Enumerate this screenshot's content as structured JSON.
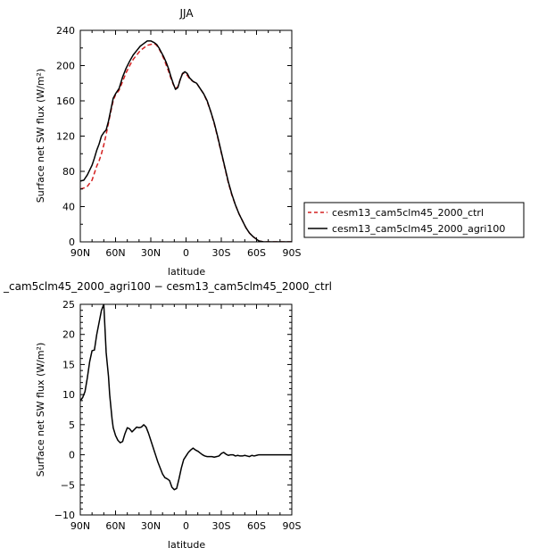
{
  "chart_data": [
    {
      "type": "line",
      "title": "JJA",
      "xlabel": "latitude",
      "ylabel": "Surface net SW flux (W/m²)",
      "xlim": [
        90,
        -90
      ],
      "ylim": [
        0,
        240
      ],
      "xticks": [
        90,
        60,
        30,
        0,
        -30,
        -60,
        -90
      ],
      "xtick_labels": [
        "90N",
        "60N",
        "30N",
        "0",
        "30S",
        "60S",
        "90S"
      ],
      "yticks": [
        0,
        40,
        80,
        120,
        160,
        200,
        240
      ],
      "ytick_labels": [
        "0",
        "40",
        "80",
        "120",
        "160",
        "200",
        "240"
      ],
      "legend_position": "right",
      "series": [
        {
          "name": "cesm13_cam5clm45_2000_ctrl",
          "color": "#d42020",
          "dash": "dashed",
          "x": [
            90,
            87,
            84,
            80,
            78,
            76,
            74,
            72,
            70,
            68,
            66,
            64,
            62,
            60,
            57,
            54,
            51,
            48,
            45,
            42,
            39,
            36,
            33,
            30,
            27,
            25,
            23,
            21,
            19,
            17,
            15,
            13,
            11,
            9,
            7,
            5,
            3,
            1,
            -1,
            -3,
            -6,
            -9,
            -12,
            -15,
            -18,
            -21,
            -24,
            -27,
            -30,
            -33,
            -36,
            -39,
            -42,
            -45,
            -48,
            -51,
            -54,
            -57,
            -60,
            -62,
            -64,
            -66,
            -68,
            -70,
            -75,
            -80,
            -85,
            -90
          ],
          "y": [
            60,
            61,
            63,
            70,
            78,
            86,
            92,
            100,
            110,
            122,
            135,
            148,
            160,
            167,
            172,
            182,
            192,
            200,
            207,
            212,
            217,
            220,
            223,
            224,
            225,
            223,
            219,
            214,
            208,
            201,
            194,
            186,
            179,
            174,
            176,
            184,
            191,
            191,
            189,
            185,
            182,
            180,
            174,
            168,
            159,
            148,
            134,
            118,
            101,
            84,
            67,
            53,
            42,
            32,
            24,
            16,
            10,
            6,
            3,
            1,
            0.5,
            0,
            0,
            0,
            0,
            0,
            0,
            0
          ]
        },
        {
          "name": "cesm13_cam5clm45_2000_agri100",
          "color": "#000000",
          "dash": "solid",
          "x": [
            90,
            87,
            84,
            80,
            78,
            76,
            74,
            72,
            70,
            68,
            66,
            64,
            62,
            60,
            57,
            54,
            51,
            48,
            45,
            42,
            39,
            36,
            33,
            30,
            27,
            25,
            23,
            21,
            19,
            17,
            15,
            13,
            11,
            9,
            7,
            5,
            3,
            1,
            -1,
            -3,
            -6,
            -9,
            -12,
            -15,
            -18,
            -21,
            -24,
            -27,
            -30,
            -33,
            -36,
            -39,
            -42,
            -45,
            -48,
            -51,
            -54,
            -57,
            -60,
            -62,
            -64,
            -66,
            -68,
            -70,
            -75,
            -80,
            -85,
            -90
          ],
          "y": [
            69,
            70,
            76,
            87,
            95,
            104,
            111,
            120,
            124,
            127,
            137,
            150,
            163,
            168,
            174,
            187,
            197,
            205,
            212,
            217,
            222,
            225,
            228,
            228,
            226,
            224,
            220,
            215,
            210,
            204,
            197,
            188,
            180,
            173,
            175,
            184,
            191,
            193,
            191,
            186,
            182,
            180,
            174,
            168,
            160,
            148,
            135,
            119,
            102,
            85,
            68,
            54,
            42,
            32,
            24,
            16,
            10,
            6,
            3,
            1,
            0.5,
            0,
            0,
            0,
            0,
            0,
            0,
            0
          ]
        }
      ]
    },
    {
      "type": "line",
      "title": "_cam5clm45_2000_agri100 − cesm13_cam5clm45_2000_ctrl",
      "xlabel": "latitude",
      "ylabel": "Surface net SW flux (W/m²)",
      "xlim": [
        90,
        -90
      ],
      "ylim": [
        -10,
        25
      ],
      "xticks": [
        90,
        60,
        30,
        0,
        -30,
        -60,
        -90
      ],
      "xtick_labels": [
        "90N",
        "60N",
        "30N",
        "0",
        "30S",
        "60S",
        "90S"
      ],
      "yticks": [
        -10,
        -5,
        0,
        5,
        10,
        15,
        20,
        25
      ],
      "ytick_labels": [
        "−10",
        "−5",
        "0",
        "5",
        "10",
        "15",
        "20",
        "25"
      ],
      "series": [
        {
          "color": "#000000",
          "dash": "solid",
          "x": [
            90,
            88,
            86,
            84,
            82,
            80,
            78,
            76,
            74,
            72,
            70,
            69,
            68,
            67,
            66,
            65,
            64,
            63,
            62,
            60,
            58,
            56,
            54,
            52,
            50,
            48,
            46,
            44,
            42,
            40,
            38,
            36,
            34,
            32,
            30,
            28,
            26,
            24,
            22,
            20,
            18,
            16,
            14,
            12,
            10,
            8,
            6,
            4,
            2,
            0,
            -2,
            -4,
            -6,
            -8,
            -10,
            -12,
            -14,
            -16,
            -18,
            -20,
            -22,
            -24,
            -26,
            -28,
            -30,
            -32,
            -34,
            -36,
            -38,
            -40,
            -42,
            -44,
            -46,
            -48,
            -50,
            -52,
            -54,
            -56,
            -58,
            -60,
            -62,
            -65,
            -70,
            -75,
            -80,
            -85,
            -90
          ],
          "y": [
            9,
            9.5,
            10.5,
            12.8,
            15.5,
            17.3,
            17.4,
            20,
            22,
            24,
            25,
            21,
            17,
            15,
            13,
            10,
            8,
            6,
            4.5,
            3.2,
            2.4,
            2,
            2.2,
            3.5,
            4.5,
            4.3,
            3.8,
            4.2,
            4.6,
            4.5,
            4.6,
            5,
            4.6,
            3.6,
            2.4,
            1.2,
            0,
            -1.2,
            -2.2,
            -3.2,
            -3.8,
            -4,
            -4.3,
            -5.4,
            -5.8,
            -5.6,
            -4,
            -2.2,
            -0.8,
            -0.2,
            0.4,
            0.8,
            1.1,
            0.8,
            0.6,
            0.3,
            0,
            -0.2,
            -0.3,
            -0.3,
            -0.3,
            -0.4,
            -0.3,
            -0.2,
            0.2,
            0.4,
            0.1,
            -0.1,
            0,
            0,
            -0.2,
            -0.1,
            -0.2,
            -0.2,
            -0.1,
            -0.2,
            -0.3,
            -0.1,
            -0.2,
            -0.1,
            0,
            0,
            0,
            0,
            0,
            0,
            0
          ]
        }
      ]
    }
  ]
}
